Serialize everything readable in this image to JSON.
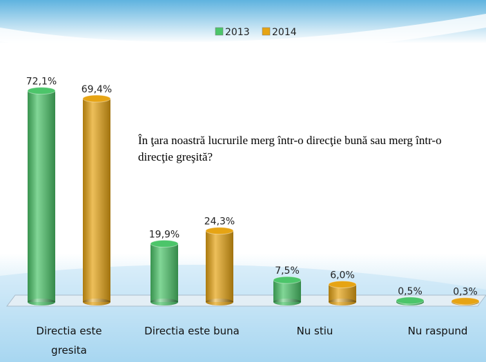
{
  "chart_data": {
    "type": "bar",
    "annotation": "În ţara noastră lucrurile merg într-o direcţie bună sau merg într-o direcţie greşită?",
    "categories": [
      "Directia este gresita",
      "Directia este buna",
      "Nu stiu",
      "Nu raspund"
    ],
    "series": [
      {
        "name": "2013",
        "color": "#4cc56a",
        "values": [
          72.1,
          19.9,
          7.5,
          0.5
        ],
        "value_labels": [
          "72,1%",
          "19,9%",
          "7,5%",
          "0,5%"
        ]
      },
      {
        "name": "2014",
        "color": "#e6a414",
        "values": [
          69.4,
          24.3,
          6.0,
          0.3
        ],
        "value_labels": [
          "69,4%",
          "24,3%",
          "6,0%",
          "0,3%"
        ]
      }
    ],
    "legend": "top"
  }
}
